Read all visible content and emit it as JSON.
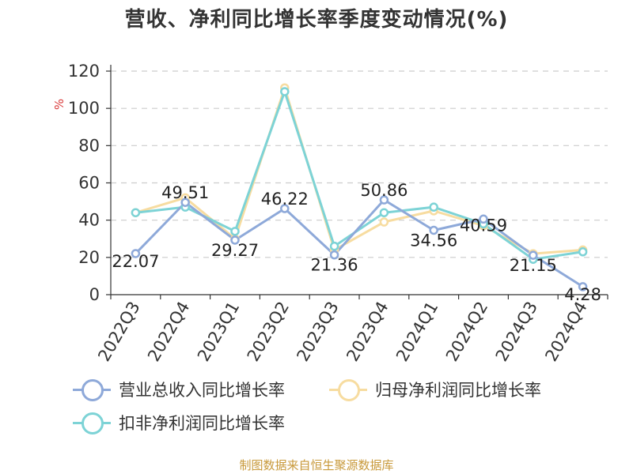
{
  "title": "营收、净利同比增长率季度变动情况(%)",
  "source_note": "制图数据来自恒生聚源数据库",
  "chart_data": {
    "type": "line",
    "title": "营收、净利同比增长率季度变动情况(%)",
    "ylabel": "%",
    "xlabel": "",
    "ylim": [
      0,
      120
    ],
    "yticks": [
      0,
      20,
      40,
      60,
      80,
      100,
      120
    ],
    "grid": true,
    "legend_position": "bottom",
    "categories": [
      "2022Q3",
      "2022Q4",
      "2023Q1",
      "2023Q2",
      "2023Q3",
      "2023Q4",
      "2024Q1",
      "2024Q2",
      "2024Q3",
      "2024Q4"
    ],
    "series": [
      {
        "name": "营业总收入同比增长率",
        "color": "#8ea9d9",
        "values": [
          22.07,
          49.51,
          29.27,
          46.22,
          21.36,
          50.86,
          34.56,
          40.59,
          21.15,
          4.28
        ],
        "labels": [
          "22.07",
          "49.51",
          "29.27",
          "46.22",
          "21.36",
          "50.86",
          "34.56",
          "40.59",
          "21.15",
          "4.28"
        ]
      },
      {
        "name": "归母净利润同比增长率",
        "color": "#f7dca0",
        "values": [
          44,
          52,
          30,
          111,
          24,
          39,
          45,
          37,
          22,
          24
        ]
      },
      {
        "name": "扣非净利润同比增长率",
        "color": "#7dd3d6",
        "values": [
          44,
          47,
          34,
          109,
          26,
          44,
          47,
          38,
          19,
          23
        ]
      }
    ]
  }
}
